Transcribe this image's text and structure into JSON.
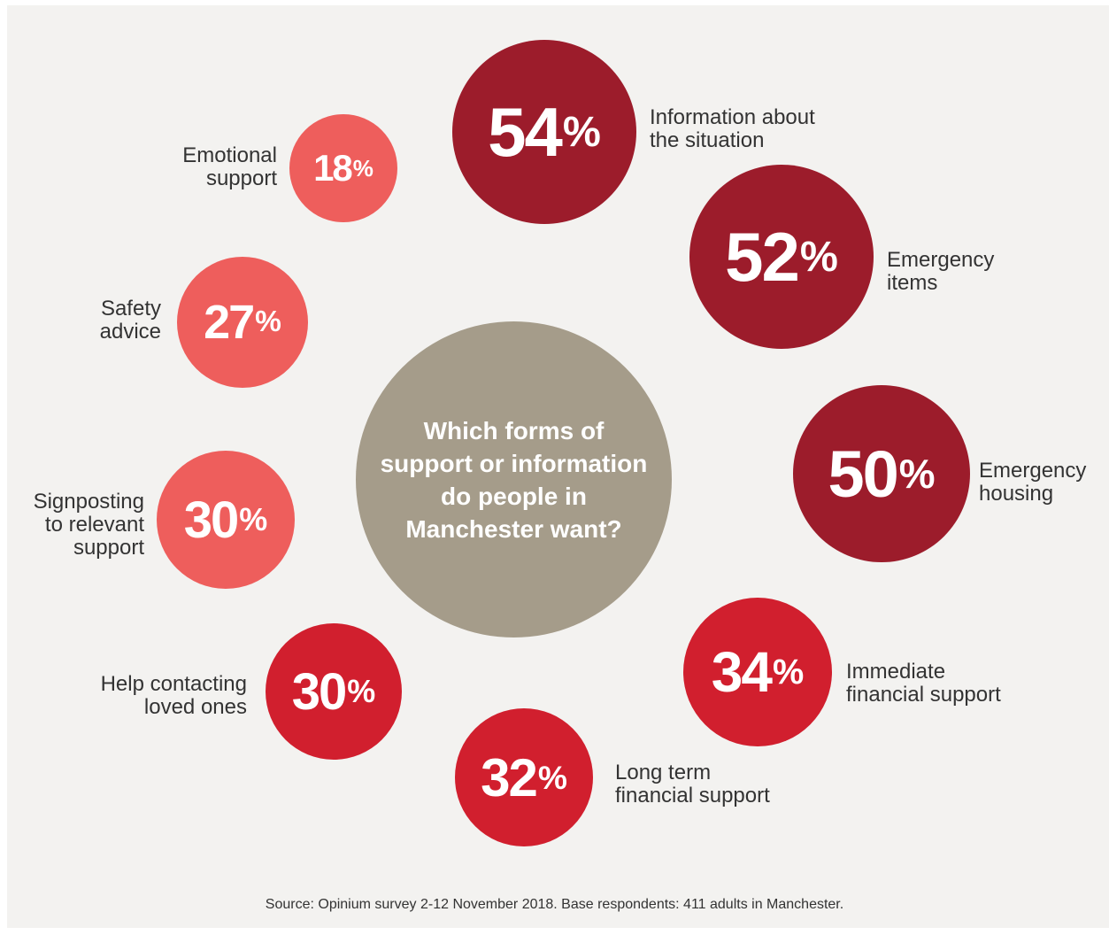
{
  "chart_data": {
    "type": "bubble",
    "title": "Which forms of\nsupport or information\ndo people in\nManchester want?",
    "unit": "%",
    "items": [
      {
        "label": "Information about\nthe situation",
        "value": 54,
        "color": "#9c1c2b"
      },
      {
        "label": "Emergency\nitems",
        "value": 52,
        "color": "#9c1c2b"
      },
      {
        "label": "Emergency\nhousing",
        "value": 50,
        "color": "#9c1c2b"
      },
      {
        "label": "Immediate\nfinancial support",
        "value": 34,
        "color": "#d11f2e"
      },
      {
        "label": "Long term\nfinancial support",
        "value": 32,
        "color": "#d11f2e"
      },
      {
        "label": "Help contacting\nloved ones",
        "value": 30,
        "color": "#d11f2e"
      },
      {
        "label": "Signposting\nto relevant\nsupport",
        "value": 30,
        "color": "#ee5e5c"
      },
      {
        "label": "Safety\nadvice",
        "value": 27,
        "color": "#ee5e5c"
      },
      {
        "label": "Emotional\nsupport",
        "value": 18,
        "color": "#ee5e5c"
      }
    ],
    "source": "Source: Opinium survey 2-12 November 2018. Base respondents: 411 adults in Manchester."
  },
  "center_color": "#a59c8a"
}
